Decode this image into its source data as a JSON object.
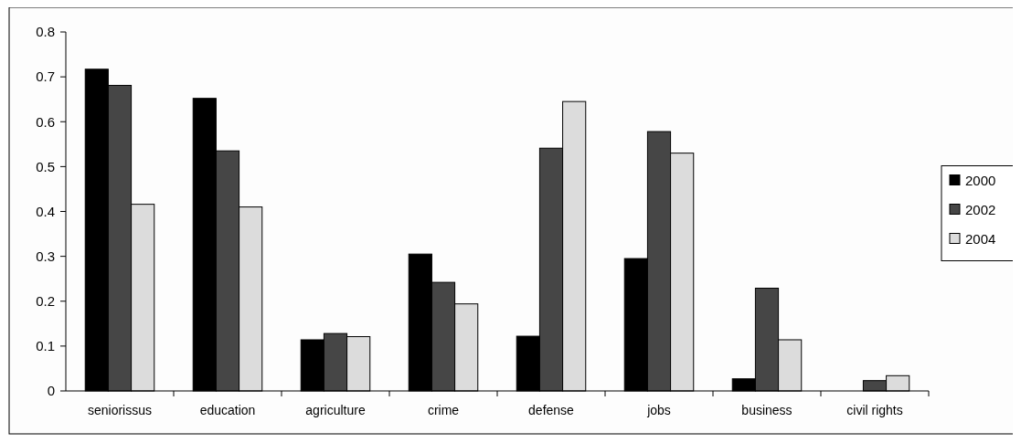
{
  "chart_data": {
    "type": "bar",
    "categories": [
      "seniorissus",
      "education",
      "agriculture",
      "crime",
      "defense",
      "jobs",
      "business",
      "civil rights"
    ],
    "series": [
      {
        "name": "2000",
        "color": "#000000",
        "values": [
          0.717,
          0.652,
          0.114,
          0.305,
          0.122,
          0.295,
          0.027,
          0
        ]
      },
      {
        "name": "2002",
        "color": "#464646",
        "values": [
          0.681,
          0.535,
          0.128,
          0.242,
          0.541,
          0.578,
          0.229,
          0.023
        ]
      },
      {
        "name": "2004",
        "color": "#dcdcdc",
        "values": [
          0.416,
          0.41,
          0.121,
          0.194,
          0.645,
          0.53,
          0.114,
          0.034
        ]
      }
    ],
    "ylim": [
      0,
      0.8
    ],
    "yticks": [
      0,
      0.1,
      0.2,
      0.3,
      0.4,
      0.5,
      0.6,
      0.7,
      0.8
    ],
    "grid": false,
    "legend": "right"
  }
}
